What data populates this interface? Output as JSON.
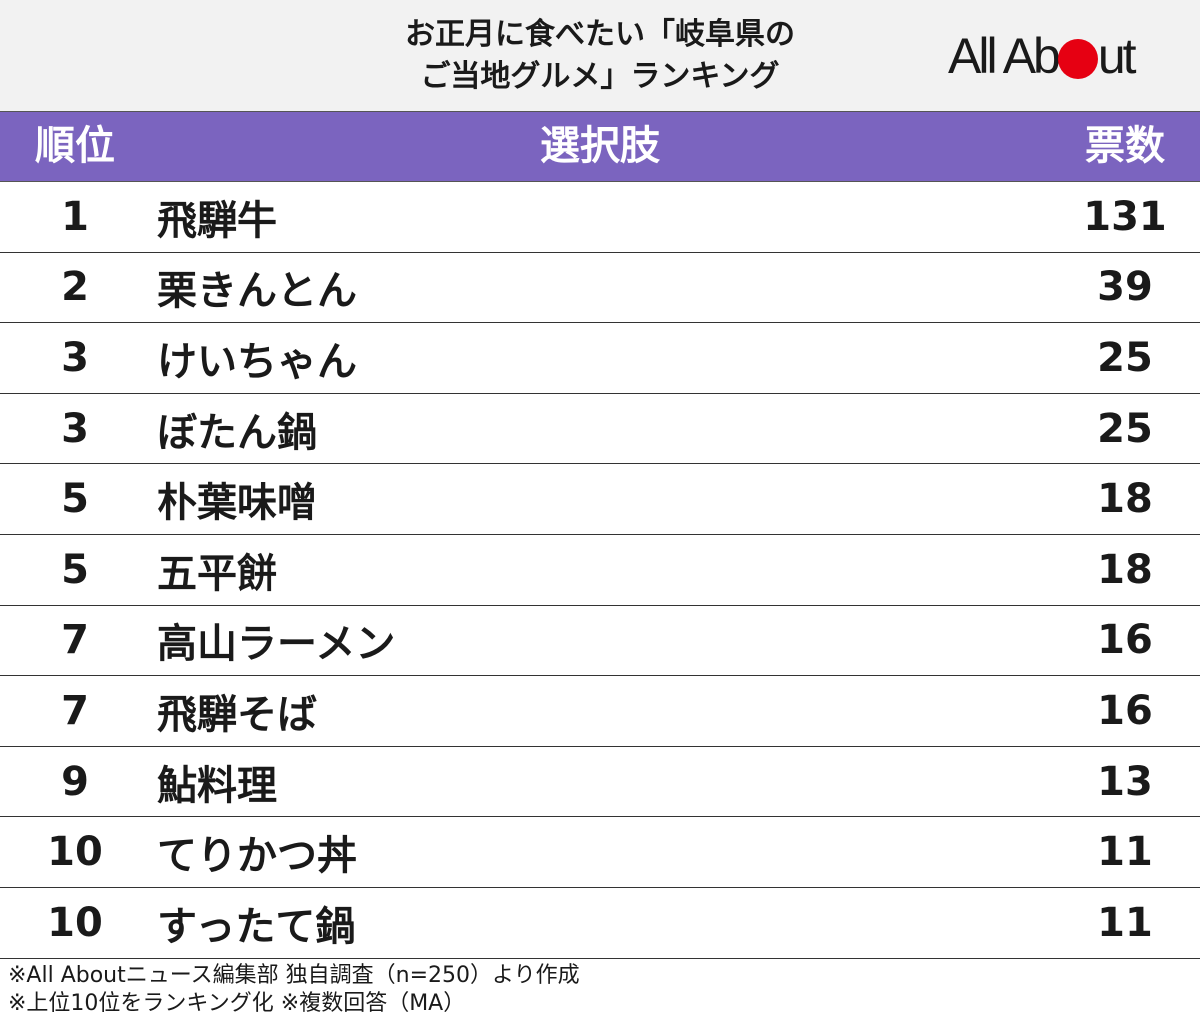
{
  "title": {
    "line1": "お正月に食べたい「岐阜県の",
    "line2": "ご当地グルメ」ランキング"
  },
  "logo": {
    "text_before": "All Ab",
    "text_after": "ut",
    "dot_color": "#e60012"
  },
  "colors": {
    "header_band": "#7b64bf",
    "title_band": "#f2f2f2"
  },
  "table": {
    "columns": {
      "rank": "順位",
      "choice": "選択肢",
      "votes": "票数"
    },
    "rows": [
      {
        "rank": "1",
        "choice": "飛騨牛",
        "votes": "131"
      },
      {
        "rank": "2",
        "choice": "栗きんとん",
        "votes": "39"
      },
      {
        "rank": "3",
        "choice": "けいちゃん",
        "votes": "25"
      },
      {
        "rank": "3",
        "choice": "ぼたん鍋",
        "votes": "25"
      },
      {
        "rank": "5",
        "choice": "朴葉味噌",
        "votes": "18"
      },
      {
        "rank": "5",
        "choice": "五平餅",
        "votes": "18"
      },
      {
        "rank": "7",
        "choice": "高山ラーメン",
        "votes": "16"
      },
      {
        "rank": "7",
        "choice": "飛騨そば",
        "votes": "16"
      },
      {
        "rank": "9",
        "choice": "鮎料理",
        "votes": "13"
      },
      {
        "rank": "10",
        "choice": "てりかつ丼",
        "votes": "11"
      },
      {
        "rank": "10",
        "choice": "すったて鍋",
        "votes": "11"
      }
    ]
  },
  "footer": {
    "line1": "※All Aboutニュース編集部 独自調査（n=250）より作成",
    "line2": "※上位10位をランキング化 ※複数回答（MA）"
  }
}
